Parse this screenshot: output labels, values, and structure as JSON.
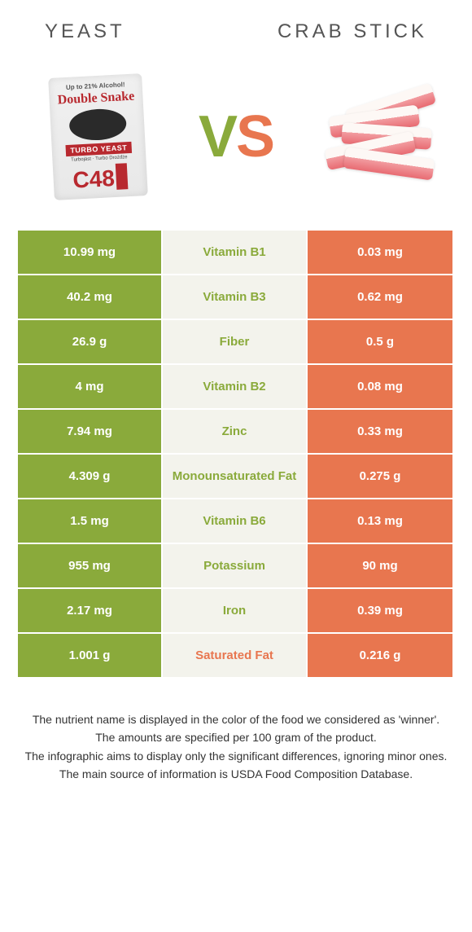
{
  "header": {
    "left_title": "Yeast",
    "right_title": "Crab stick"
  },
  "vs": {
    "v": "V",
    "s": "S"
  },
  "yeast_packet": {
    "top_text": "Up to 21% Alcohol!",
    "brand": "Double Snake",
    "turbo": "TURBO YEAST",
    "sub": "Turbojäst · Turbo Drożdże",
    "code": "C48"
  },
  "colors": {
    "left": "#8aaa3b",
    "right": "#e8764f",
    "mid_bg": "#f3f3ec"
  },
  "rows": [
    {
      "left": "10.99 mg",
      "name": "Vitamin B1",
      "right": "0.03 mg",
      "winner": "left"
    },
    {
      "left": "40.2 mg",
      "name": "Vitamin B3",
      "right": "0.62 mg",
      "winner": "left"
    },
    {
      "left": "26.9 g",
      "name": "Fiber",
      "right": "0.5 g",
      "winner": "left"
    },
    {
      "left": "4 mg",
      "name": "Vitamin B2",
      "right": "0.08 mg",
      "winner": "left"
    },
    {
      "left": "7.94 mg",
      "name": "Zinc",
      "right": "0.33 mg",
      "winner": "left"
    },
    {
      "left": "4.309 g",
      "name": "Monounsaturated Fat",
      "right": "0.275 g",
      "winner": "left"
    },
    {
      "left": "1.5 mg",
      "name": "Vitamin B6",
      "right": "0.13 mg",
      "winner": "left"
    },
    {
      "left": "955 mg",
      "name": "Potassium",
      "right": "90 mg",
      "winner": "left"
    },
    {
      "left": "2.17 mg",
      "name": "Iron",
      "right": "0.39 mg",
      "winner": "left"
    },
    {
      "left": "1.001 g",
      "name": "Saturated Fat",
      "right": "0.216 g",
      "winner": "right"
    }
  ],
  "footnotes": [
    "The nutrient name is displayed in the color of the food we considered as 'winner'.",
    "The amounts are specified per 100 gram of the product.",
    "The infographic aims to display only the significant differences, ignoring minor ones.",
    "The main source of information is USDA Food Composition Database."
  ]
}
